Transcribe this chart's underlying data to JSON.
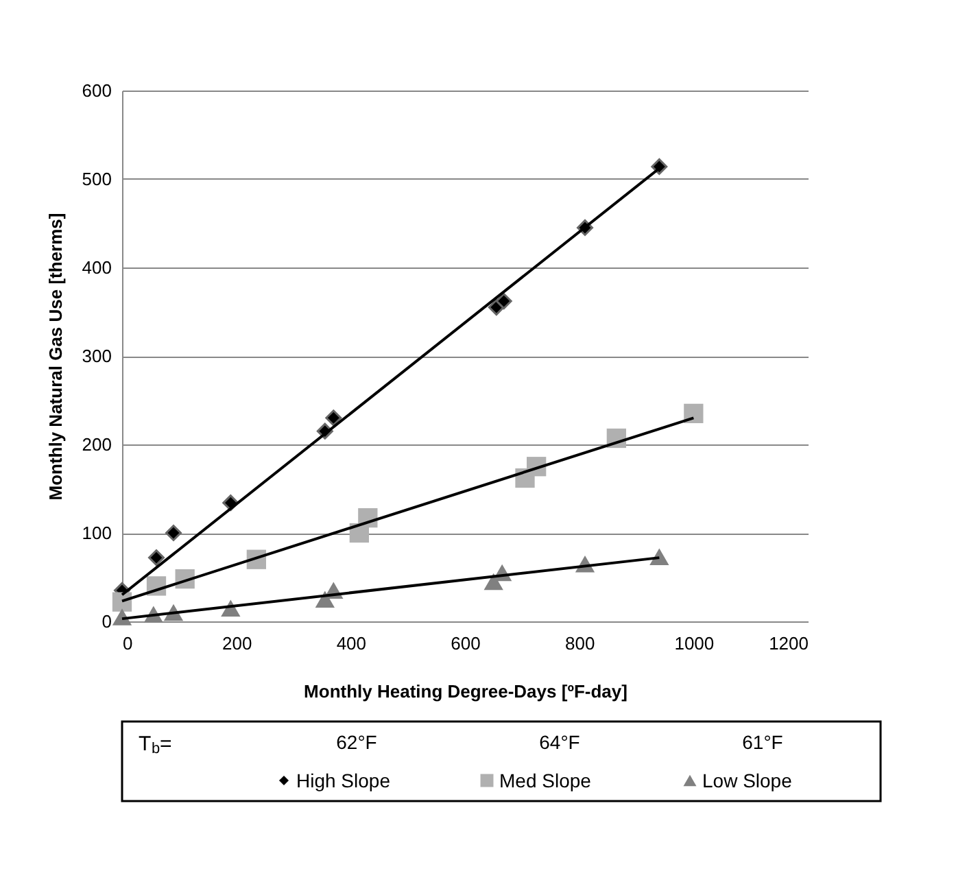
{
  "chart_data": {
    "type": "scatter",
    "xlabel": "Monthly Heating Degree-Days [ºF-day]",
    "ylabel": "Monthly Natural Gas Use [therms]",
    "xlim": [
      0,
      1200
    ],
    "xticks": [
      0,
      200,
      400,
      600,
      800,
      1000,
      1200
    ],
    "ylim": [
      0,
      600
    ],
    "yticks": [
      0,
      100,
      200,
      300,
      400,
      500,
      600
    ],
    "grid": "y",
    "legend": "bottom",
    "annotations": [
      "T$_{b}$=",
      "62°F",
      "64°F",
      "61°F"
    ],
    "series": [
      {
        "name": "High Slope",
        "color": "#000000",
        "marker": "diamond",
        "x": [
          0,
          60,
          90,
          190,
          355,
          370,
          655,
          668,
          810,
          940
        ],
        "values": [
          35,
          72,
          100,
          134,
          215,
          230,
          355,
          362,
          445,
          514
        ]
      },
      {
        "name": "Med Slope",
        "color": "#b0b0b0",
        "marker": "square",
        "x": [
          0,
          60,
          110,
          235,
          415,
          430,
          705,
          725,
          865,
          1000
        ],
        "values": [
          22,
          40,
          48,
          70,
          100,
          117,
          162,
          175,
          207,
          235
        ]
      },
      {
        "name": "Low Slope",
        "color": "#808080",
        "marker": "triangle",
        "x": [
          0,
          55,
          90,
          190,
          355,
          370,
          650,
          665,
          810,
          940
        ],
        "values": [
          5,
          8,
          10,
          15,
          25,
          35,
          45,
          55,
          65,
          73
        ]
      },
      {
        "type": "line",
        "color": "#000000",
        "marker": "none",
        "x": [
          0,
          940
        ],
        "values": [
          30,
          512
        ]
      },
      {
        "type": "line",
        "color": "#000000",
        "marker": "none",
        "x": [
          0,
          1000
        ],
        "values": [
          23,
          230
        ]
      },
      {
        "type": "line",
        "color": "#000000",
        "marker": "none",
        "x": [
          0,
          940
        ],
        "values": [
          3,
          72
        ]
      }
    ]
  }
}
